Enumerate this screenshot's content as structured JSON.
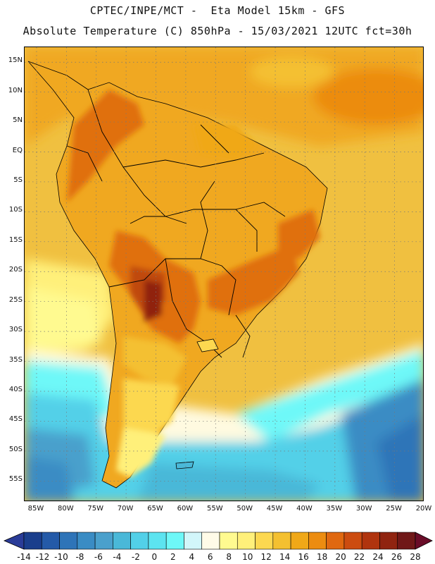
{
  "header": {
    "title_line1": "CPTEC/INPE/MCT -  Eta Model 15km - GFS",
    "title_line2": "Absolute Temperature (C) 850hPa - 15/03/2021 12UTC fct=30h"
  },
  "map": {
    "lat_labels": [
      "15N",
      "10N",
      "5N",
      "EQ",
      "5S",
      "10S",
      "15S",
      "20S",
      "25S",
      "30S",
      "35S",
      "40S",
      "45S",
      "50S",
      "55S"
    ],
    "lon_labels": [
      "85W",
      "80W",
      "75W",
      "70W",
      "65W",
      "60W",
      "55W",
      "50W",
      "45W",
      "40W",
      "35W",
      "30W",
      "25W",
      "20W"
    ],
    "lat_values": [
      15,
      10,
      5,
      0,
      -5,
      -10,
      -15,
      -20,
      -25,
      -30,
      -35,
      -40,
      -45,
      -50,
      -55
    ],
    "lon_values": [
      -85,
      -80,
      -75,
      -70,
      -65,
      -60,
      -55,
      -50,
      -45,
      -40,
      -35,
      -30,
      -25,
      -20
    ],
    "colors": {
      "ocean_warm": "#f0c040",
      "land_warm": "#f0a820",
      "hot": "#e07010",
      "very_hot": "#c04a10",
      "pale": "#fff0b0",
      "cream": "#fffae0",
      "cyan_light": "#80f0f8",
      "cyan": "#40d8f0",
      "teal": "#40b8d8",
      "blue": "#3088c0",
      "dark_blue": "#2060a8"
    }
  },
  "colorbar": {
    "labels": [
      "-14",
      "-12",
      "-10",
      "-8",
      "-6",
      "-4",
      "-2",
      "0",
      "2",
      "4",
      "6",
      "8",
      "10",
      "12",
      "14",
      "16",
      "18",
      "20",
      "22",
      "24",
      "26",
      "28"
    ],
    "colors": [
      "#1a3e8c",
      "#245aa8",
      "#2e74b8",
      "#3a8cc4",
      "#4aa0cc",
      "#4ab8d8",
      "#52d0e8",
      "#5ce4f0",
      "#6ef8f8",
      "#d2f6fa",
      "#fffbe8",
      "#fffa90",
      "#fff07a",
      "#fcd850",
      "#f4c030",
      "#f0a818",
      "#ec8c10",
      "#e06810",
      "#cc4c10",
      "#b0340e",
      "#902410",
      "#701818"
    ],
    "under_color": "#2a3c98",
    "over_color": "#6a0c28"
  }
}
